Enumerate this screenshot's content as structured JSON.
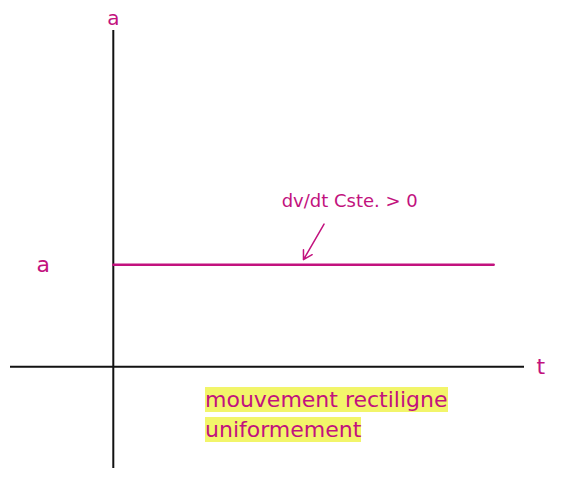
{
  "chart_data": {
    "type": "line",
    "x_label": "t",
    "y_label": "a",
    "x": [
      0,
      3.7
    ],
    "values": [
      1,
      1
    ],
    "color": "#c2127e",
    "xlim": [
      -1,
      4
    ],
    "ylim": [
      -1,
      3.3
    ],
    "yticks": [
      {
        "value": 1,
        "label": "a"
      }
    ],
    "tick_labels": "y",
    "grid": false,
    "annotation": "dv/dt Cste. > 0",
    "caption": "mouvement rectiligne uniformement"
  }
}
